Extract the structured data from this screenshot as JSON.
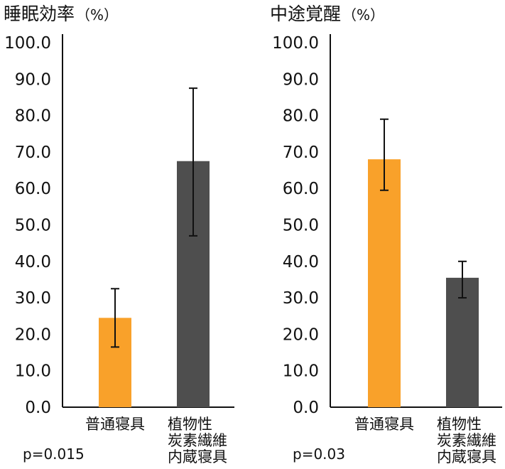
{
  "colors": {
    "normal": "#f9a12a",
    "carbon": "#4e4e4e",
    "axis": "#111111",
    "error": "#111111"
  },
  "chart_data": [
    {
      "type": "bar",
      "title": "睡眠効率",
      "unit": "（%）",
      "categories": [
        {
          "lines": [
            "普通寝具"
          ]
        },
        {
          "lines": [
            "植物性",
            "炭素繊維",
            "内蔵寝具"
          ]
        }
      ],
      "values": [
        24.5,
        67.5
      ],
      "error_low": [
        16.5,
        47.0
      ],
      "error_high": [
        32.5,
        87.5
      ],
      "bar_colors": [
        "#f9a12a",
        "#4e4e4e"
      ],
      "ylim": [
        0,
        100
      ],
      "yticks": [
        "0.0",
        "10.0",
        "20.0",
        "30.0",
        "40.0",
        "50.0",
        "60.0",
        "70.0",
        "80.0",
        "90.0",
        "100.0"
      ],
      "grid": false,
      "pvalue": "p=0.015"
    },
    {
      "type": "bar",
      "title": "中途覚醒",
      "unit": "（%）",
      "categories": [
        {
          "lines": [
            "普通寝具"
          ]
        },
        {
          "lines": [
            "植物性",
            "炭素繊維",
            "内蔵寝具"
          ]
        }
      ],
      "values": [
        68.0,
        35.5
      ],
      "error_low": [
        59.5,
        30.0
      ],
      "error_high": [
        79.0,
        40.0
      ],
      "bar_colors": [
        "#f9a12a",
        "#4e4e4e"
      ],
      "ylim": [
        0,
        100
      ],
      "yticks": [
        "0.0",
        "10.0",
        "20.0",
        "30.0",
        "40.0",
        "50.0",
        "60.0",
        "70.0",
        "80.0",
        "90.0",
        "100.0"
      ],
      "grid": false,
      "pvalue": "p=0.03"
    }
  ]
}
